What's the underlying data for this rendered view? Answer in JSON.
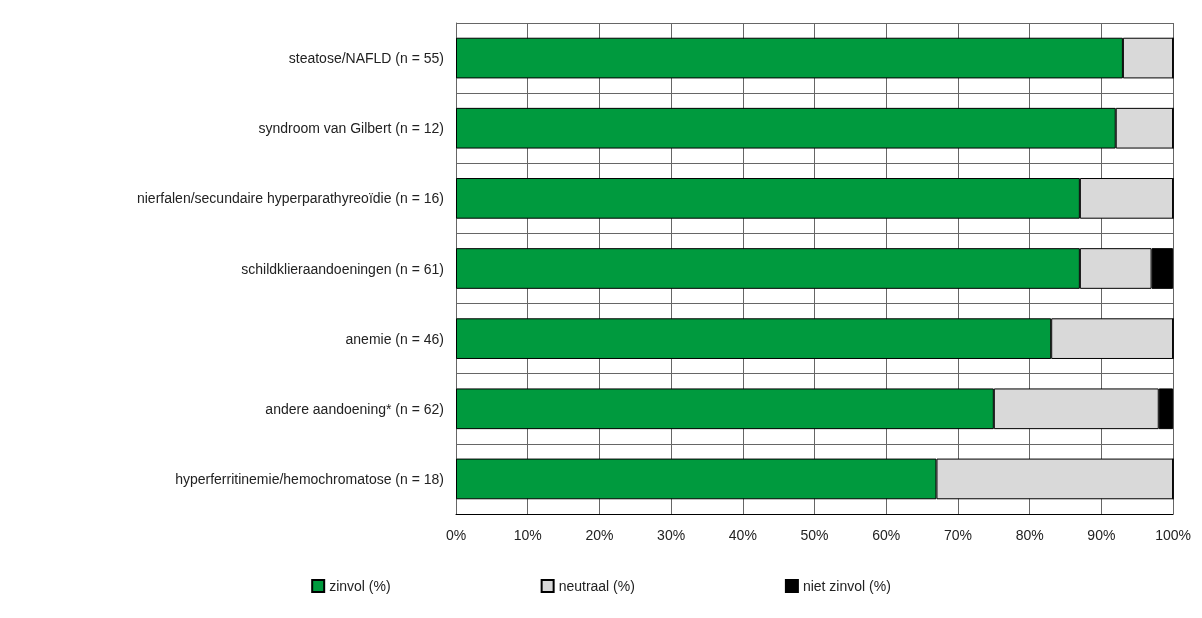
{
  "chart_data": {
    "type": "bar",
    "orientation": "horizontal",
    "stacked": true,
    "categories": [
      "steatose/NAFLD (n = 55)",
      "syndroom van Gilbert (n = 12)",
      "nierfalen/secundaire hyperparathyreoïdie (n = 16)",
      "schildklieraandoeningen (n = 61)",
      "anemie (n = 46)",
      "andere aandoening* (n = 62)",
      "hyperferritinemie/hemochromatose (n = 18)"
    ],
    "series": [
      {
        "name": "zinvol (%)",
        "color": "#009a3e",
        "values": [
          93,
          92,
          87,
          87,
          83,
          75,
          67
        ]
      },
      {
        "name": "neutraal (%)",
        "color": "#d9d9d9",
        "values": [
          7,
          8,
          13,
          10,
          17,
          23,
          33
        ]
      },
      {
        "name": "niet zinvol (%)",
        "color": "#000000",
        "values": [
          0,
          0,
          0,
          3,
          0,
          2,
          0
        ]
      }
    ],
    "xlim": [
      0,
      100
    ],
    "xticks": [
      {
        "value": 0,
        "label": "0%"
      },
      {
        "value": 10,
        "label": "10%"
      },
      {
        "value": 20,
        "label": "20%"
      },
      {
        "value": 30,
        "label": "30%"
      },
      {
        "value": 40,
        "label": "40%"
      },
      {
        "value": 50,
        "label": "50%"
      },
      {
        "value": 60,
        "label": "60%"
      },
      {
        "value": 70,
        "label": "70%"
      },
      {
        "value": 80,
        "label": "80%"
      },
      {
        "value": 90,
        "label": "90%"
      },
      {
        "value": 100,
        "label": "100%"
      }
    ],
    "grid": true,
    "legend": "bottom"
  }
}
